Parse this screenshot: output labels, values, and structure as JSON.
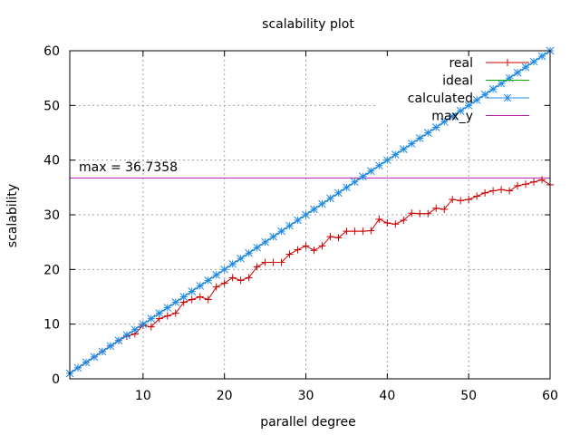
{
  "chart_data": {
    "type": "line",
    "title": "scalability plot",
    "xlabel": "parallel degree",
    "ylabel": "scalability",
    "xlim": [
      1,
      60
    ],
    "ylim": [
      0,
      60
    ],
    "xticks": [
      10,
      20,
      30,
      40,
      50,
      60
    ],
    "yticks": [
      0,
      10,
      20,
      30,
      40,
      50,
      60
    ],
    "grid": true,
    "legend_position": "top-right",
    "annotation": "max = 36.7358",
    "series": [
      {
        "name": "real",
        "color": "#cc0000",
        "marker": "plus",
        "x": [
          1,
          2,
          3,
          4,
          5,
          6,
          7,
          8,
          9,
          10,
          11,
          12,
          13,
          14,
          15,
          16,
          17,
          18,
          19,
          20,
          21,
          22,
          23,
          24,
          25,
          26,
          27,
          28,
          29,
          30,
          31,
          32,
          33,
          34,
          35,
          36,
          37,
          38,
          39,
          40,
          41,
          42,
          43,
          44,
          45,
          46,
          47,
          48,
          49,
          50,
          51,
          52,
          53,
          54,
          55,
          56,
          57,
          58,
          59,
          60
        ],
        "y": [
          1.0,
          2.0,
          3.0,
          4.0,
          5.0,
          6.0,
          7.0,
          7.8,
          8.2,
          9.8,
          9.5,
          11.0,
          11.5,
          12.0,
          14.0,
          14.5,
          15.0,
          14.5,
          16.8,
          17.5,
          18.5,
          18.0,
          18.5,
          20.5,
          21.3,
          21.3,
          21.3,
          22.8,
          23.6,
          24.3,
          23.5,
          24.3,
          26.0,
          25.8,
          27.0,
          27.0,
          27.0,
          27.1,
          29.2,
          28.5,
          28.3,
          29.0,
          30.3,
          30.2,
          30.2,
          31.2,
          31.0,
          32.8,
          32.6,
          32.8,
          33.4,
          34.0,
          34.4,
          34.6,
          34.4,
          35.3,
          35.6,
          36.0,
          36.4,
          35.5
        ]
      },
      {
        "name": "ideal",
        "color": "#00aa00",
        "marker": "none",
        "x": [
          1,
          60
        ],
        "y": [
          1,
          60
        ]
      },
      {
        "name": "calculated",
        "color": "#1e88e5",
        "marker": "star",
        "x": [
          1,
          2,
          3,
          4,
          5,
          6,
          7,
          8,
          9,
          10,
          11,
          12,
          13,
          14,
          15,
          16,
          17,
          18,
          19,
          20,
          21,
          22,
          23,
          24,
          25,
          26,
          27,
          28,
          29,
          30,
          31,
          32,
          33,
          34,
          35,
          36,
          37,
          38,
          39,
          40,
          41,
          42,
          43,
          44,
          45,
          46,
          47,
          48,
          49,
          50,
          51,
          52,
          53,
          54,
          55,
          56,
          57,
          58,
          59,
          60
        ],
        "y": [
          1,
          2,
          3,
          4,
          5,
          6,
          7,
          8,
          9,
          10,
          11,
          12,
          13,
          14,
          15,
          16,
          17,
          18,
          19,
          20,
          21,
          22,
          23,
          24,
          25,
          26,
          27,
          28,
          29,
          30,
          31,
          32,
          33,
          34,
          35,
          36,
          37,
          38,
          39,
          40,
          41,
          42,
          43,
          44,
          45,
          46,
          47,
          48,
          49,
          50,
          51,
          52,
          53,
          54,
          55,
          56,
          57,
          58,
          59,
          60
        ]
      },
      {
        "name": "max_y",
        "color": "#b020b0",
        "marker": "none",
        "x": [
          1,
          60
        ],
        "y": [
          36.7358,
          36.7358
        ]
      }
    ]
  }
}
